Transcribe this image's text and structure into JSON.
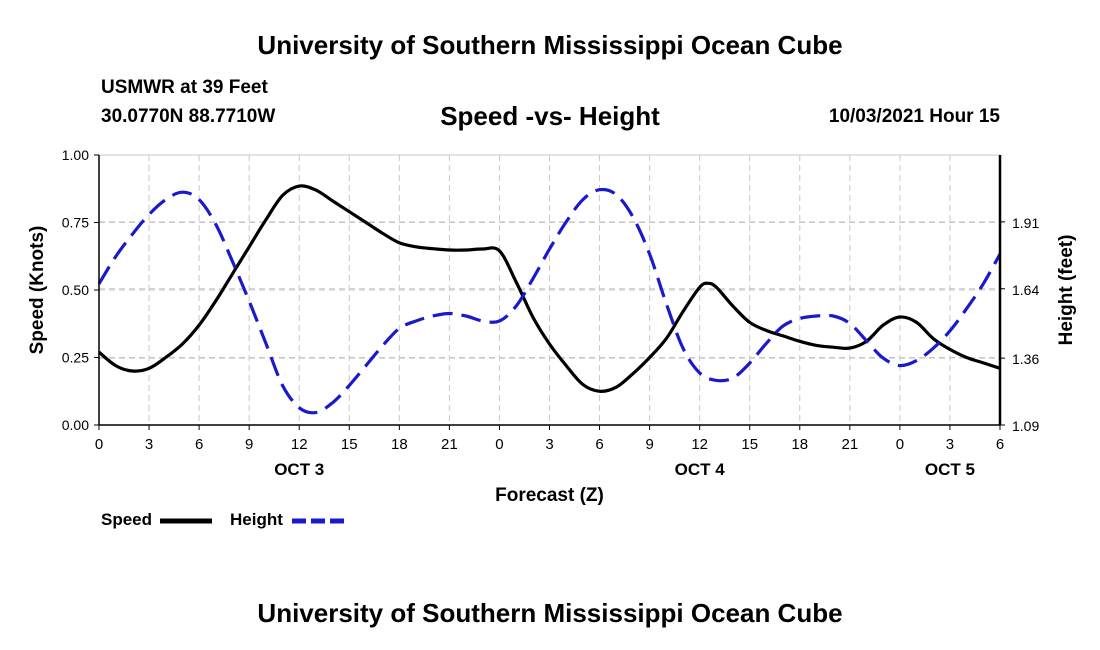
{
  "header": {
    "title": "University of Southern Mississippi Ocean Cube",
    "station": "USMWR at 39 Feet",
    "coordinates": "30.0770N  88.7710W",
    "datetime": "10/03/2021 Hour 15"
  },
  "footer": {
    "title": "University of Southern Mississippi Ocean Cube"
  },
  "chart_data": {
    "type": "line",
    "title": "Speed -vs- Height",
    "xlabel": "Forecast (Z)",
    "ylabel": "Speed (Knots)",
    "y2label": "Height (feet)",
    "x_range": [
      0,
      54
    ],
    "ylim": [
      0,
      1
    ],
    "y2lim": [
      1.09,
      2.18
    ],
    "x_ticks": [
      {
        "x": 0,
        "label": "0"
      },
      {
        "x": 3,
        "label": "3"
      },
      {
        "x": 6,
        "label": "6"
      },
      {
        "x": 9,
        "label": "9"
      },
      {
        "x": 12,
        "label": "12"
      },
      {
        "x": 15,
        "label": "15"
      },
      {
        "x": 18,
        "label": "18"
      },
      {
        "x": 21,
        "label": "21"
      },
      {
        "x": 24,
        "label": "0"
      },
      {
        "x": 27,
        "label": "3"
      },
      {
        "x": 30,
        "label": "6"
      },
      {
        "x": 33,
        "label": "9"
      },
      {
        "x": 36,
        "label": "12"
      },
      {
        "x": 39,
        "label": "15"
      },
      {
        "x": 42,
        "label": "18"
      },
      {
        "x": 45,
        "label": "21"
      },
      {
        "x": 48,
        "label": "0"
      },
      {
        "x": 51,
        "label": "3"
      },
      {
        "x": 54,
        "label": "6"
      }
    ],
    "date_labels": [
      {
        "x": 12,
        "label": "OCT 3"
      },
      {
        "x": 36,
        "label": "OCT 4"
      },
      {
        "x": 51,
        "label": "OCT 5"
      }
    ],
    "y_ticks": [
      {
        "value": 0,
        "label": "0.00"
      },
      {
        "value": 0.25,
        "label": "0.25"
      },
      {
        "value": 0.5,
        "label": "0.50"
      },
      {
        "value": 0.75,
        "label": "0.75"
      },
      {
        "value": 1,
        "label": "1.00"
      }
    ],
    "y2_ticks": [
      {
        "value": 1.09,
        "label": "1.09"
      },
      {
        "value": 1.36,
        "label": "1.36"
      },
      {
        "value": 1.64,
        "label": "1.64"
      },
      {
        "value": 1.91,
        "label": "1.91"
      }
    ],
    "grid": true,
    "series": [
      {
        "name": "Speed",
        "axis": "left",
        "color": "#000000",
        "style": "solid",
        "points": [
          [
            0,
            0.27
          ],
          [
            1,
            0.22
          ],
          [
            2,
            0.2
          ],
          [
            3,
            0.21
          ],
          [
            4,
            0.25
          ],
          [
            5,
            0.3
          ],
          [
            6,
            0.37
          ],
          [
            7,
            0.46
          ],
          [
            8,
            0.56
          ],
          [
            9,
            0.66
          ],
          [
            10,
            0.76
          ],
          [
            11,
            0.85
          ],
          [
            12,
            0.885
          ],
          [
            13,
            0.87
          ],
          [
            14,
            0.83
          ],
          [
            15,
            0.79
          ],
          [
            16,
            0.75
          ],
          [
            17,
            0.71
          ],
          [
            18,
            0.675
          ],
          [
            19,
            0.66
          ],
          [
            20,
            0.653
          ],
          [
            21,
            0.648
          ],
          [
            22,
            0.648
          ],
          [
            23,
            0.652
          ],
          [
            24,
            0.645
          ],
          [
            25,
            0.53
          ],
          [
            26,
            0.4
          ],
          [
            27,
            0.3
          ],
          [
            28,
            0.22
          ],
          [
            29,
            0.15
          ],
          [
            30,
            0.125
          ],
          [
            31,
            0.14
          ],
          [
            32,
            0.19
          ],
          [
            33,
            0.25
          ],
          [
            34,
            0.32
          ],
          [
            35,
            0.42
          ],
          [
            36,
            0.51
          ],
          [
            36.5,
            0.525
          ],
          [
            37,
            0.51
          ],
          [
            38,
            0.44
          ],
          [
            39,
            0.38
          ],
          [
            40,
            0.35
          ],
          [
            41,
            0.33
          ],
          [
            42,
            0.31
          ],
          [
            43,
            0.295
          ],
          [
            44,
            0.288
          ],
          [
            45,
            0.285
          ],
          [
            46,
            0.31
          ],
          [
            47,
            0.37
          ],
          [
            48,
            0.4
          ],
          [
            49,
            0.38
          ],
          [
            50,
            0.32
          ],
          [
            51,
            0.28
          ],
          [
            52,
            0.25
          ],
          [
            53,
            0.23
          ],
          [
            54,
            0.21
          ]
        ]
      },
      {
        "name": "Height",
        "axis": "right",
        "color": "#1a1acc",
        "style": "dashed",
        "points": [
          [
            0,
            1.66
          ],
          [
            1,
            1.77
          ],
          [
            2,
            1.86
          ],
          [
            3,
            1.94
          ],
          [
            4,
            2.0
          ],
          [
            5,
            2.03
          ],
          [
            6,
            2.0
          ],
          [
            7,
            1.9
          ],
          [
            8,
            1.75
          ],
          [
            9,
            1.59
          ],
          [
            10,
            1.42
          ],
          [
            11,
            1.25
          ],
          [
            12,
            1.16
          ],
          [
            13,
            1.14
          ],
          [
            14,
            1.18
          ],
          [
            15,
            1.25
          ],
          [
            16,
            1.33
          ],
          [
            17,
            1.41
          ],
          [
            18,
            1.48
          ],
          [
            19,
            1.51
          ],
          [
            20,
            1.53
          ],
          [
            21,
            1.54
          ],
          [
            22,
            1.53
          ],
          [
            23,
            1.51
          ],
          [
            24,
            1.51
          ],
          [
            25,
            1.57
          ],
          [
            26,
            1.68
          ],
          [
            27,
            1.8
          ],
          [
            28,
            1.91
          ],
          [
            29,
            2.0
          ],
          [
            30,
            2.04
          ],
          [
            31,
            2.02
          ],
          [
            32,
            1.93
          ],
          [
            33,
            1.78
          ],
          [
            34,
            1.58
          ],
          [
            35,
            1.4
          ],
          [
            36,
            1.3
          ],
          [
            37,
            1.27
          ],
          [
            38,
            1.28
          ],
          [
            39,
            1.34
          ],
          [
            40,
            1.42
          ],
          [
            41,
            1.49
          ],
          [
            42,
            1.52
          ],
          [
            43,
            1.53
          ],
          [
            44,
            1.53
          ],
          [
            45,
            1.5
          ],
          [
            46,
            1.43
          ],
          [
            47,
            1.36
          ],
          [
            48,
            1.33
          ],
          [
            49,
            1.35
          ],
          [
            50,
            1.4
          ],
          [
            51,
            1.47
          ],
          [
            52,
            1.56
          ],
          [
            53,
            1.66
          ],
          [
            54,
            1.78
          ]
        ]
      }
    ],
    "legend": {
      "position": "bottom-left",
      "items": [
        {
          "label": "Speed",
          "color": "#000000",
          "style": "solid"
        },
        {
          "label": "Height",
          "color": "#1a1acc",
          "style": "dashed"
        }
      ]
    }
  }
}
